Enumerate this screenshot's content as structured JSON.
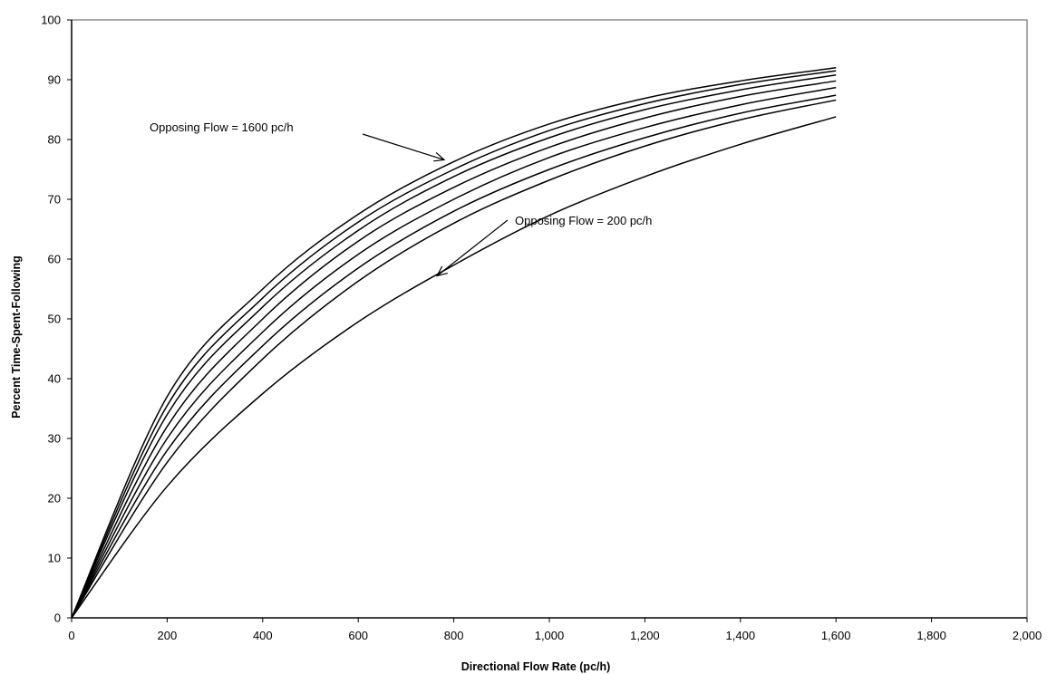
{
  "chart_data": {
    "type": "line",
    "title": "",
    "xlabel": "Directional Flow Rate (pc/h)",
    "ylabel": "Percent Time-Spent-Following",
    "xlim": [
      0,
      2000
    ],
    "ylim": [
      0,
      100
    ],
    "x_ticks": [
      "0",
      "200",
      "400",
      "600",
      "800",
      "1,000",
      "1,200",
      "1,400",
      "1,600",
      "1,800",
      "2,000"
    ],
    "y_ticks": [
      "0",
      "10",
      "20",
      "30",
      "40",
      "50",
      "60",
      "70",
      "80",
      "90",
      "100"
    ],
    "grid": false,
    "legend": "none",
    "line_color": "#000000",
    "x": [
      0,
      200,
      400,
      600,
      800,
      1000,
      1200,
      1400,
      1600
    ],
    "series": [
      {
        "values": [
          0,
          37.0,
          55.0,
          67.5,
          76.3,
          82.6,
          86.9,
          89.8,
          92.0
        ]
      },
      {
        "values": [
          0,
          35.5,
          53.5,
          66.2,
          75.0,
          81.5,
          86.0,
          89.2,
          91.5
        ]
      },
      {
        "values": [
          0,
          34.0,
          52.0,
          64.8,
          73.8,
          80.3,
          85.0,
          88.3,
          90.8
        ]
      },
      {
        "values": [
          0,
          32.0,
          50.0,
          63.0,
          72.0,
          78.7,
          83.6,
          87.2,
          89.8
        ]
      },
      {
        "values": [
          0,
          30.0,
          47.8,
          60.8,
          70.0,
          77.0,
          82.0,
          85.8,
          88.7
        ]
      },
      {
        "values": [
          0,
          28.0,
          45.5,
          58.5,
          68.0,
          75.0,
          80.3,
          84.4,
          87.4
        ]
      },
      {
        "values": [
          0,
          26.0,
          43.3,
          56.3,
          66.0,
          73.2,
          78.9,
          83.3,
          86.6
        ]
      },
      {
        "values": [
          0,
          22.0,
          37.5,
          49.5,
          59.0,
          67.3,
          73.8,
          79.2,
          83.8
        ]
      }
    ],
    "annotations": [
      {
        "text": "Opposing Flow = 1600 pc/h",
        "arrow_to": [
          780,
          76.6
        ]
      },
      {
        "text": "Opposing Flow = 200 pc/h",
        "arrow_to": [
          765,
          57.2
        ]
      }
    ]
  }
}
